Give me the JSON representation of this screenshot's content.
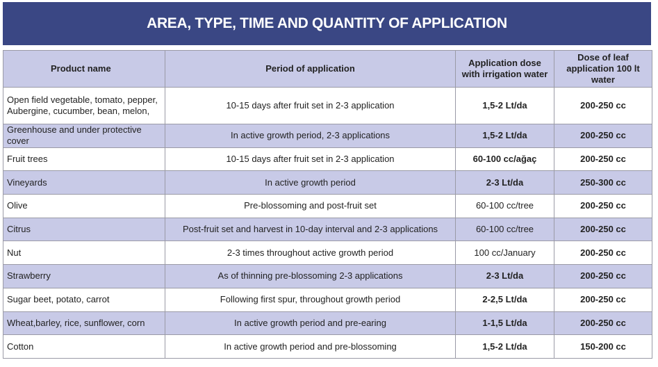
{
  "header": {
    "title": "AREA, TYPE, TIME AND QUANTITY OF APPLICATION"
  },
  "table": {
    "columns": [
      "Product name",
      "Period of application",
      "Application dose with irrigation water",
      "Dose of leaf application 100 lt water"
    ],
    "rows": [
      [
        "Open field vegetable, tomato, pepper, Aubergine, cucumber, bean, melon,",
        "10-15 days after fruit set in 2-3 application",
        "1,5-2 Lt/da",
        "200-250 cc"
      ],
      [
        "Greenhouse and under protective cover",
        "In active growth period, 2-3 applications",
        "1,5-2 Lt/da",
        "200-250 cc"
      ],
      [
        "Fruit trees",
        "10-15 days after fruit set in 2-3 application",
        "60-100 cc/ağaç",
        "200-250 cc"
      ],
      [
        "Vineyards",
        "In active growth period",
        "2-3 Lt/da",
        "250-300 cc"
      ],
      [
        "Olive",
        "Pre-blossoming and post-fruit set",
        "60-100 cc/tree",
        "200-250 cc"
      ],
      [
        "Citrus",
        "Post-fruit set and harvest in 10-day interval and 2-3 applications",
        "60-100 cc/tree",
        "200-250 cc"
      ],
      [
        "Nut",
        "2-3 times throughout active growth period",
        "100 cc/January",
        "200-250 cc"
      ],
      [
        "Strawberry",
        "As of thinning pre-blossoming 2-3 applications",
        "2-3 Lt/da",
        "200-250 cc"
      ],
      [
        "Sugar beet, potato, carrot",
        "Following first spur, throughout growth period",
        "2-2,5 Lt/da",
        "200-250 cc"
      ],
      [
        "Wheat,barley, rice, sunflower, corn",
        "In active growth period and pre-earing",
        "1-1,5 Lt/da",
        "200-250 cc"
      ],
      [
        "Cotton",
        "In active growth period and pre-blossoming",
        "1,5-2 Lt/da",
        "150-200 cc"
      ]
    ]
  }
}
